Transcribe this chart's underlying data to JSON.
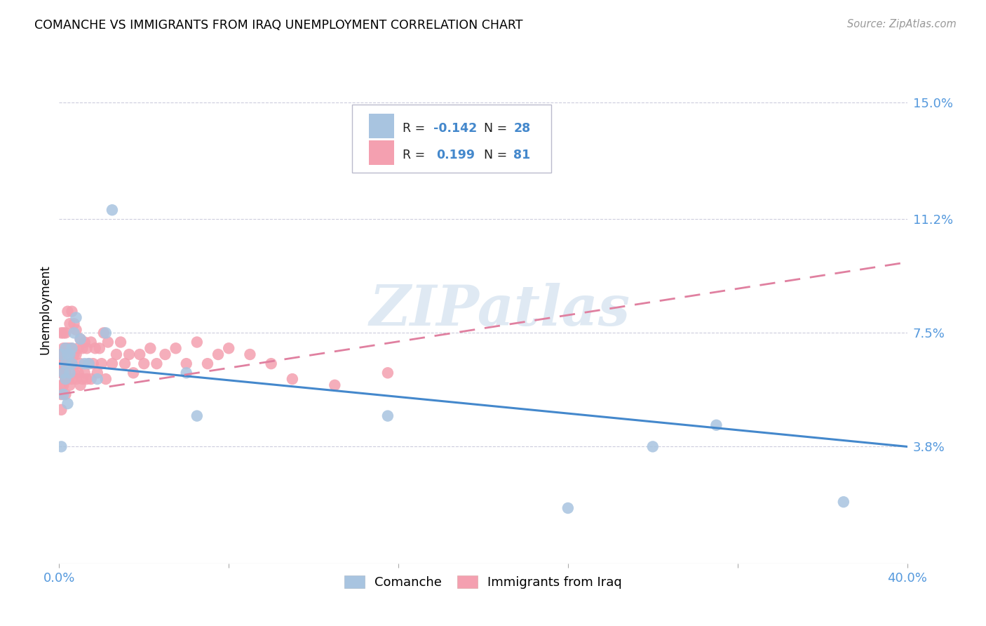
{
  "title": "COMANCHE VS IMMIGRANTS FROM IRAQ UNEMPLOYMENT CORRELATION CHART",
  "source": "Source: ZipAtlas.com",
  "ylabel": "Unemployment",
  "ytick_labels": [
    "15.0%",
    "11.2%",
    "7.5%",
    "3.8%"
  ],
  "ytick_values": [
    0.15,
    0.112,
    0.075,
    0.038
  ],
  "xlim": [
    0.0,
    0.4
  ],
  "ylim": [
    0.0,
    0.165
  ],
  "color_comanche": "#a8c4e0",
  "color_iraq": "#f4a0b0",
  "line_color_comanche": "#4488cc",
  "line_color_iraq": "#e080a0",
  "watermark": "ZIPatlas",
  "comanche_x": [
    0.001,
    0.001,
    0.002,
    0.002,
    0.003,
    0.003,
    0.003,
    0.004,
    0.004,
    0.005,
    0.005,
    0.006,
    0.006,
    0.007,
    0.008,
    0.01,
    0.012,
    0.014,
    0.018,
    0.022,
    0.025,
    0.06,
    0.065,
    0.155,
    0.24,
    0.28,
    0.31,
    0.37
  ],
  "comanche_y": [
    0.068,
    0.038,
    0.062,
    0.055,
    0.065,
    0.07,
    0.06,
    0.052,
    0.068,
    0.062,
    0.068,
    0.065,
    0.07,
    0.075,
    0.08,
    0.073,
    0.065,
    0.065,
    0.06,
    0.075,
    0.115,
    0.062,
    0.048,
    0.048,
    0.018,
    0.038,
    0.045,
    0.02
  ],
  "iraq_x": [
    0.001,
    0.001,
    0.001,
    0.001,
    0.001,
    0.001,
    0.001,
    0.002,
    0.002,
    0.002,
    0.002,
    0.002,
    0.002,
    0.003,
    0.003,
    0.003,
    0.003,
    0.003,
    0.003,
    0.004,
    0.004,
    0.004,
    0.004,
    0.005,
    0.005,
    0.005,
    0.005,
    0.006,
    0.006,
    0.006,
    0.006,
    0.007,
    0.007,
    0.007,
    0.008,
    0.008,
    0.008,
    0.009,
    0.009,
    0.01,
    0.01,
    0.01,
    0.011,
    0.011,
    0.012,
    0.012,
    0.013,
    0.013,
    0.014,
    0.015,
    0.015,
    0.016,
    0.017,
    0.018,
    0.019,
    0.02,
    0.021,
    0.022,
    0.023,
    0.025,
    0.027,
    0.029,
    0.031,
    0.033,
    0.035,
    0.038,
    0.04,
    0.043,
    0.046,
    0.05,
    0.055,
    0.06,
    0.065,
    0.07,
    0.075,
    0.08,
    0.09,
    0.1,
    0.11,
    0.13,
    0.155
  ],
  "iraq_y": [
    0.05,
    0.055,
    0.058,
    0.062,
    0.065,
    0.068,
    0.075,
    0.058,
    0.062,
    0.065,
    0.068,
    0.07,
    0.075,
    0.055,
    0.06,
    0.062,
    0.065,
    0.07,
    0.075,
    0.06,
    0.065,
    0.07,
    0.082,
    0.058,
    0.065,
    0.07,
    0.078,
    0.06,
    0.065,
    0.07,
    0.082,
    0.062,
    0.068,
    0.078,
    0.06,
    0.068,
    0.076,
    0.062,
    0.07,
    0.058,
    0.065,
    0.073,
    0.06,
    0.07,
    0.062,
    0.072,
    0.06,
    0.07,
    0.065,
    0.06,
    0.072,
    0.065,
    0.07,
    0.062,
    0.07,
    0.065,
    0.075,
    0.06,
    0.072,
    0.065,
    0.068,
    0.072,
    0.065,
    0.068,
    0.062,
    0.068,
    0.065,
    0.07,
    0.065,
    0.068,
    0.07,
    0.065,
    0.072,
    0.065,
    0.068,
    0.07,
    0.068,
    0.065,
    0.06,
    0.058,
    0.062
  ],
  "com_line_x0": 0.0,
  "com_line_y0": 0.065,
  "com_line_x1": 0.4,
  "com_line_y1": 0.038,
  "iraq_line_x0": 0.0,
  "iraq_line_y0": 0.055,
  "iraq_line_x1": 0.4,
  "iraq_line_y1": 0.098
}
